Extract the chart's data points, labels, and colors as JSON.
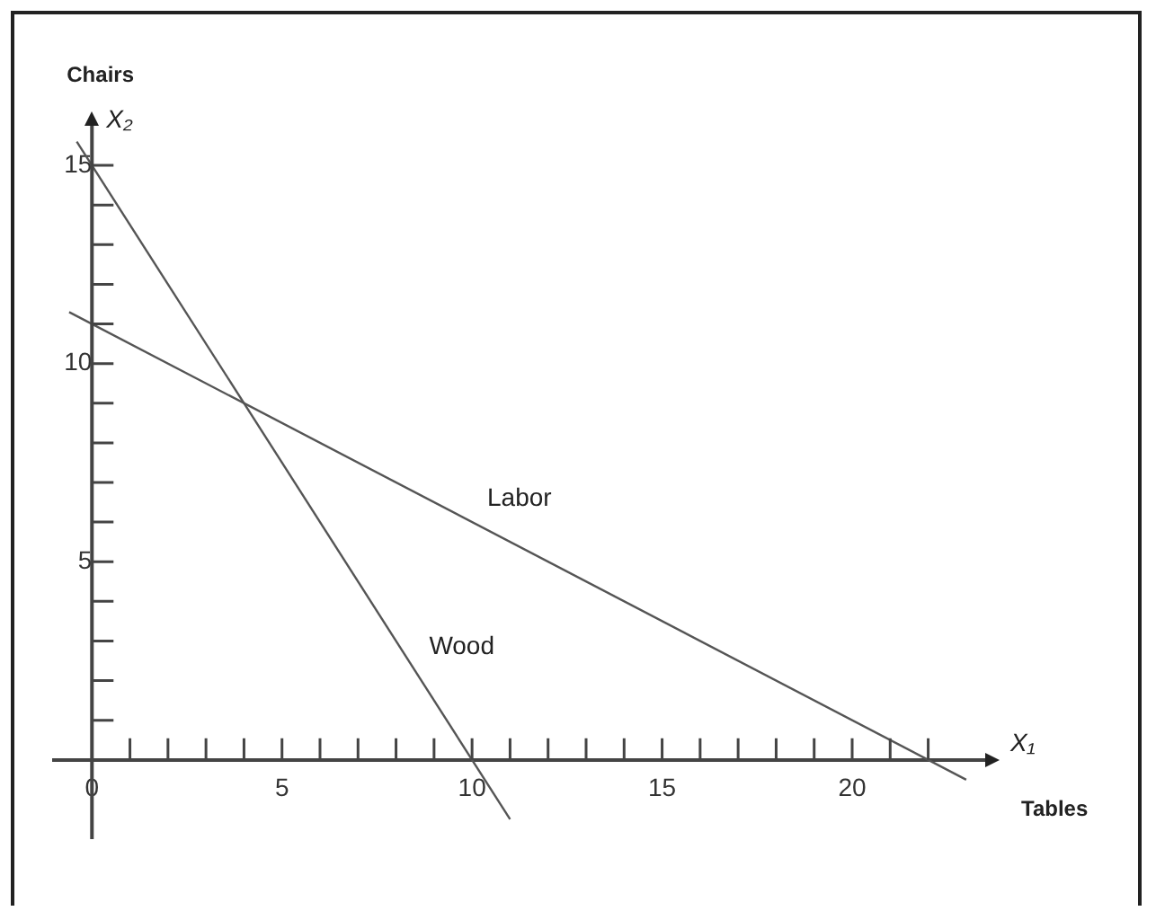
{
  "chart_data": {
    "type": "line",
    "xlabel": "Tables",
    "ylabel": "Chairs",
    "annotations": [
      "X₁",
      "X₂"
    ],
    "xlim": [
      -1,
      23.5
    ],
    "ylim": [
      -2,
      16
    ],
    "xticks": [
      0,
      {
        "value": 1,
        "label": null
      },
      {
        "value": 2,
        "label": null
      },
      {
        "value": 3,
        "label": null
      },
      {
        "value": 4,
        "label": null
      },
      5,
      {
        "value": 6,
        "label": null
      },
      {
        "value": 7,
        "label": null
      },
      {
        "value": 8,
        "label": null
      },
      {
        "value": 9,
        "label": null
      },
      10,
      {
        "value": 11,
        "label": null
      },
      {
        "value": 12,
        "label": null
      },
      {
        "value": 13,
        "label": null
      },
      {
        "value": 14,
        "label": null
      },
      15,
      {
        "value": 16,
        "label": null
      },
      {
        "value": 17,
        "label": null
      },
      {
        "value": 18,
        "label": null
      },
      {
        "value": 19,
        "label": null
      },
      20,
      {
        "value": 21,
        "label": null
      },
      {
        "value": 22,
        "label": null
      }
    ],
    "yticks": [
      {
        "value": 1,
        "label": null
      },
      {
        "value": 2,
        "label": null
      },
      {
        "value": 3,
        "label": null
      },
      {
        "value": 4,
        "label": null
      },
      5,
      {
        "value": 6,
        "label": null
      },
      {
        "value": 7,
        "label": null
      },
      {
        "value": 8,
        "label": null
      },
      {
        "value": 9,
        "label": null
      },
      10,
      {
        "value": 11,
        "label": null
      },
      {
        "value": 12,
        "label": null
      },
      {
        "value": 13,
        "label": null
      },
      {
        "value": 14,
        "label": null
      },
      15
    ],
    "grid": false,
    "legend": false,
    "marker": "none",
    "line_style": "solid",
    "series": [
      {
        "name": "Labor",
        "color": "#555555",
        "x": [
          -0.6,
          23
        ],
        "values": [
          11.3,
          -0.5
        ]
      },
      {
        "name": "Wood",
        "color": "#555555",
        "x": [
          -0.4,
          11
        ],
        "values": [
          15.6,
          -1.5
        ]
      }
    ]
  }
}
